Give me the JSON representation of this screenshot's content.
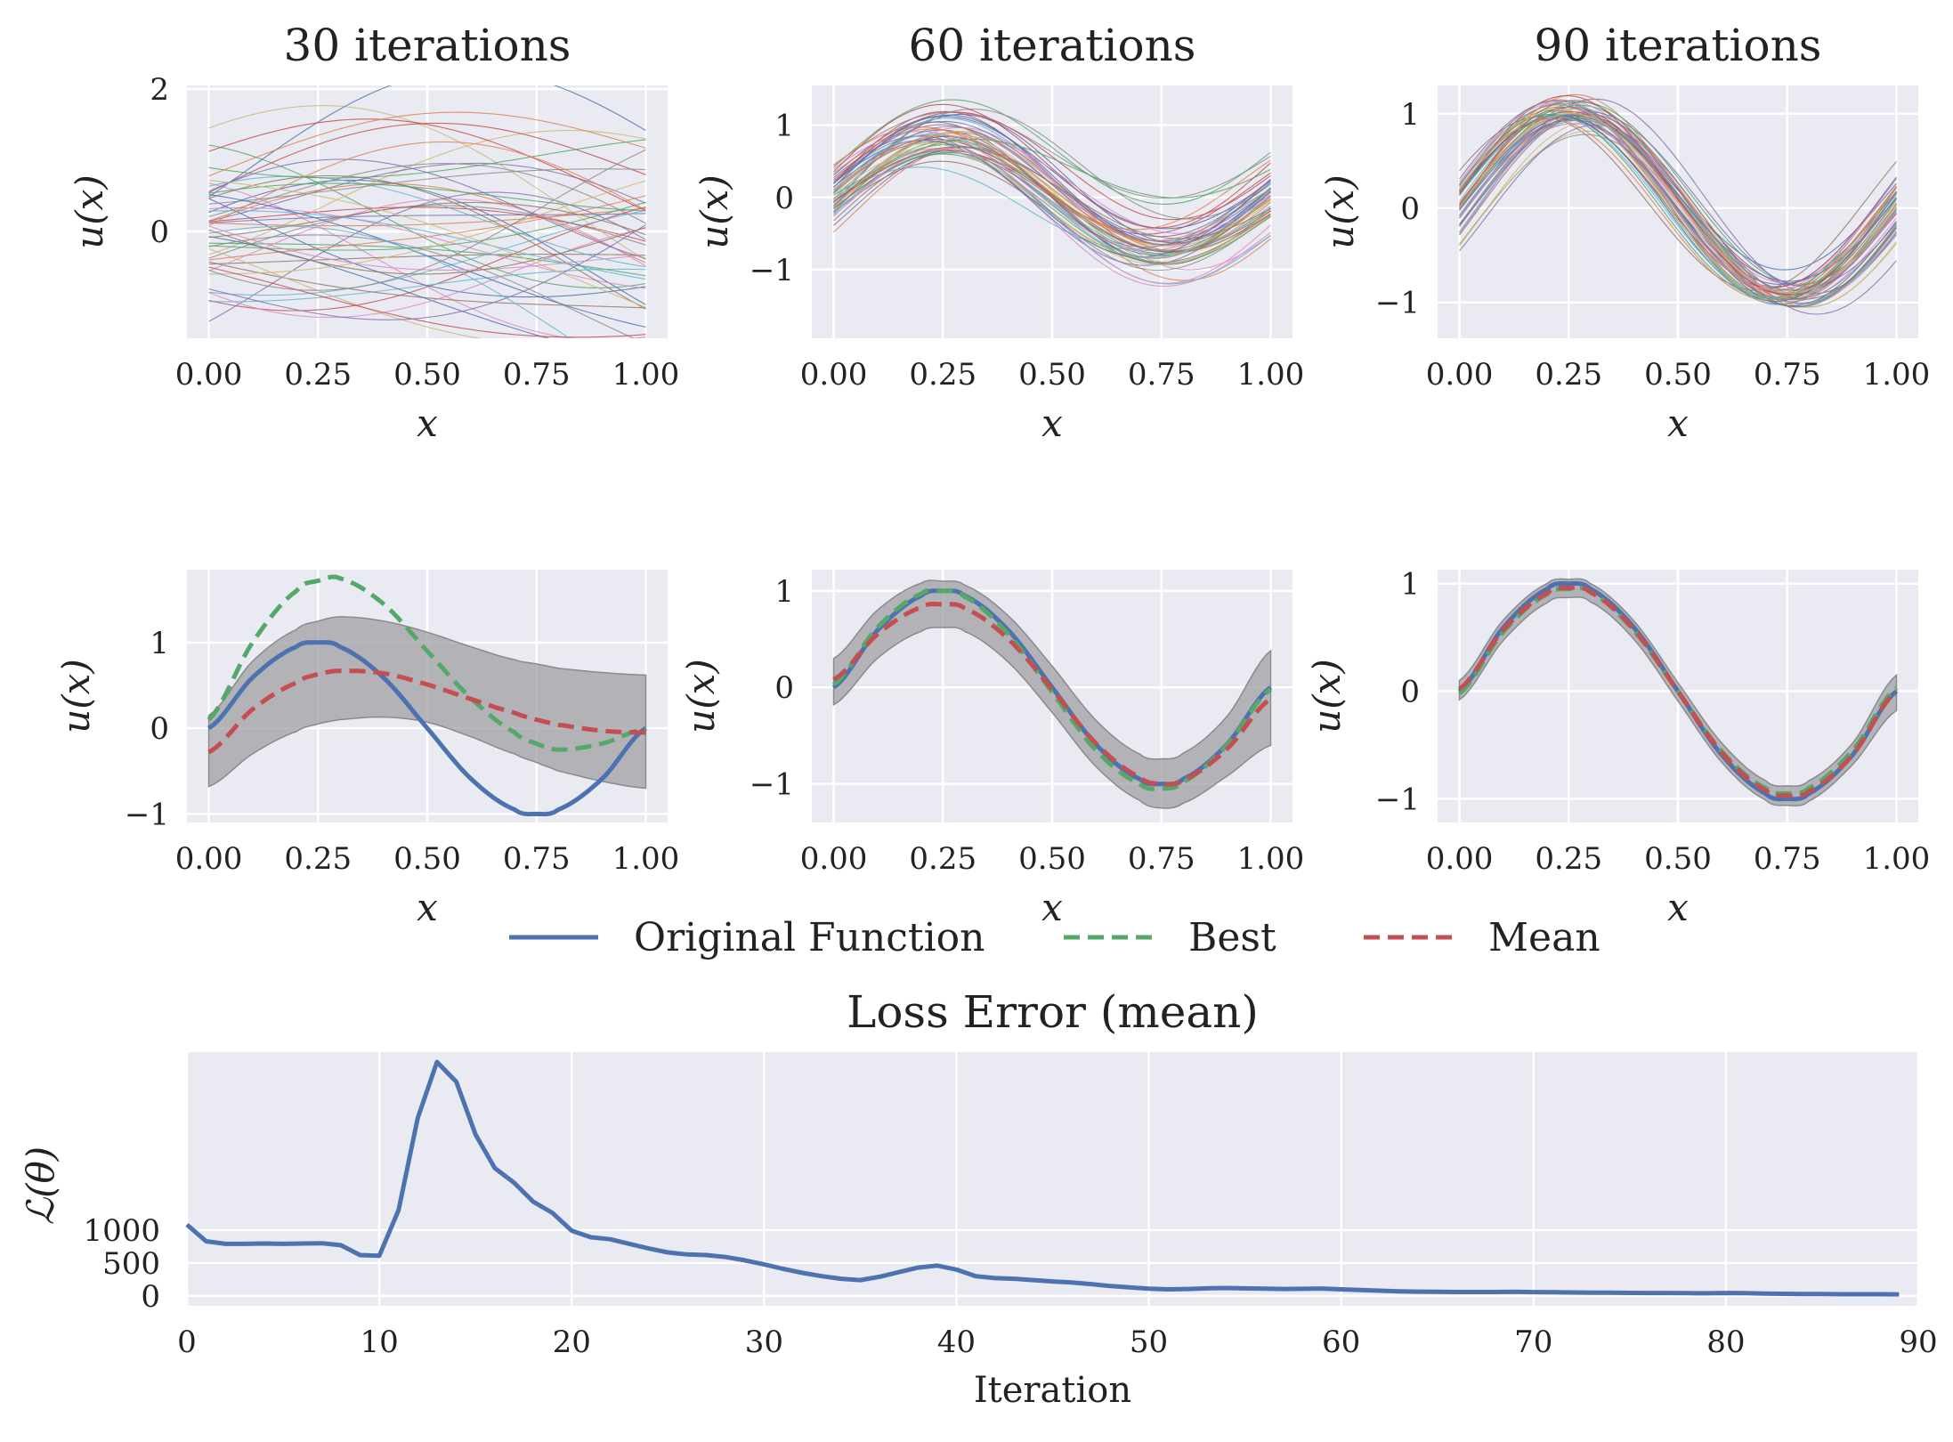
{
  "colors": {
    "axes_bg": "#EAEAF2",
    "grid": "#FFFFFF",
    "original": "#4C72B0",
    "best": "#55A868",
    "mean": "#C44E52",
    "band": "#9a9a9e",
    "sample_palette": [
      "#4C72B0",
      "#55A868",
      "#C44E52",
      "#8172B2",
      "#CCB974",
      "#64B5CD",
      "#DD8452",
      "#DA8BC3",
      "#937860",
      "#8C8C8C"
    ]
  },
  "legend": {
    "original": "Original Function",
    "best": "Best",
    "mean": "Mean"
  },
  "chart_data": [
    {
      "id": "samples-30",
      "type": "line",
      "title": "30 iterations",
      "xlabel": "x",
      "ylabel": "u(x)",
      "xlim": [
        -0.05,
        1.05
      ],
      "ylim": [
        -1.5,
        2.05
      ],
      "xticks": [
        "0.00",
        "0.25",
        "0.50",
        "0.75",
        "1.00"
      ],
      "yticks": [
        {
          "v": 0,
          "label": "0"
        },
        {
          "v": 2,
          "label": "2"
        }
      ],
      "series_count": 50,
      "spread": "wide",
      "x_range": [
        0,
        1
      ]
    },
    {
      "id": "samples-60",
      "type": "line",
      "title": "60 iterations",
      "xlabel": "x",
      "ylabel": "u(x)",
      "xlim": [
        -0.05,
        1.05
      ],
      "ylim": [
        -1.95,
        1.55
      ],
      "xticks": [
        "0.00",
        "0.25",
        "0.50",
        "0.75",
        "1.00"
      ],
      "yticks": [
        {
          "v": -1,
          "label": "−1"
        },
        {
          "v": 0,
          "label": "0"
        },
        {
          "v": 1,
          "label": "1"
        }
      ],
      "series_count": 50,
      "spread": "medium",
      "x_range": [
        0,
        1
      ]
    },
    {
      "id": "samples-90",
      "type": "line",
      "title": "90 iterations",
      "xlabel": "x",
      "ylabel": "u(x)",
      "xlim": [
        -0.05,
        1.05
      ],
      "ylim": [
        -1.38,
        1.3
      ],
      "xticks": [
        "0.00",
        "0.25",
        "0.50",
        "0.75",
        "1.00"
      ],
      "yticks": [
        {
          "v": -1,
          "label": "−1"
        },
        {
          "v": 0,
          "label": "0"
        },
        {
          "v": 1,
          "label": "1"
        }
      ],
      "series_count": 50,
      "spread": "narrow",
      "x_range": [
        0,
        1
      ]
    },
    {
      "id": "summary-30",
      "type": "line",
      "xlabel": "x",
      "ylabel": "u(x)",
      "xlim": [
        -0.05,
        1.05
      ],
      "ylim": [
        -1.1,
        1.85
      ],
      "xticks": [
        "0.00",
        "0.25",
        "0.50",
        "0.75",
        "1.00"
      ],
      "yticks": [
        {
          "v": -1,
          "label": "−1"
        },
        {
          "v": 0,
          "label": "0"
        },
        {
          "v": 1,
          "label": "1"
        }
      ],
      "x": [
        0,
        0.1,
        0.2,
        0.25,
        0.3,
        0.4,
        0.5,
        0.6,
        0.7,
        0.75,
        0.8,
        0.9,
        1.0
      ],
      "original": [
        0,
        0.59,
        0.95,
        1.0,
        0.95,
        0.59,
        0,
        -0.59,
        -0.95,
        -1.0,
        -0.95,
        -0.59,
        0
      ],
      "best": [
        0.1,
        1.0,
        1.6,
        1.72,
        1.75,
        1.45,
        0.9,
        0.35,
        -0.05,
        -0.18,
        -0.25,
        -0.18,
        0
      ],
      "mean": [
        -0.28,
        0.22,
        0.53,
        0.63,
        0.67,
        0.64,
        0.51,
        0.34,
        0.18,
        0.1,
        0.04,
        -0.03,
        -0.05
      ],
      "band_lower": [
        -0.68,
        -0.3,
        -0.04,
        0.05,
        0.1,
        0.13,
        0.07,
        -0.1,
        -0.3,
        -0.4,
        -0.5,
        -0.62,
        -0.7
      ],
      "band_upper": [
        0.15,
        0.78,
        1.15,
        1.25,
        1.3,
        1.25,
        1.12,
        0.95,
        0.8,
        0.75,
        0.7,
        0.65,
        0.62
      ]
    },
    {
      "id": "summary-60",
      "type": "line",
      "xlabel": "x",
      "ylabel": "u(x)",
      "xlim": [
        -0.05,
        1.05
      ],
      "ylim": [
        -1.4,
        1.22
      ],
      "xticks": [
        "0.00",
        "0.25",
        "0.50",
        "0.75",
        "1.00"
      ],
      "yticks": [
        {
          "v": -1,
          "label": "−1"
        },
        {
          "v": 0,
          "label": "0"
        },
        {
          "v": 1,
          "label": "1"
        }
      ],
      "x": [
        0,
        0.1,
        0.2,
        0.25,
        0.3,
        0.4,
        0.5,
        0.6,
        0.7,
        0.75,
        0.8,
        0.9,
        1.0
      ],
      "original": [
        0,
        0.59,
        0.95,
        1.0,
        0.95,
        0.59,
        0,
        -0.59,
        -0.95,
        -1.0,
        -0.95,
        -0.59,
        0
      ],
      "best": [
        0.03,
        0.62,
        0.97,
        1.0,
        0.94,
        0.55,
        -0.05,
        -0.65,
        -1.0,
        -1.05,
        -0.98,
        -0.6,
        -0.02
      ],
      "mean": [
        0.08,
        0.55,
        0.83,
        0.86,
        0.82,
        0.5,
        -0.02,
        -0.58,
        -0.93,
        -1.0,
        -0.96,
        -0.64,
        -0.12
      ],
      "band_lower": [
        -0.18,
        0.3,
        0.58,
        0.62,
        0.58,
        0.26,
        -0.26,
        -0.82,
        -1.17,
        -1.25,
        -1.2,
        -0.92,
        -0.6
      ],
      "band_upper": [
        0.3,
        0.8,
        1.08,
        1.1,
        1.06,
        0.74,
        0.22,
        -0.34,
        -0.69,
        -0.74,
        -0.68,
        -0.3,
        0.38
      ]
    },
    {
      "id": "summary-90",
      "type": "line",
      "xlabel": "x",
      "ylabel": "u(x)",
      "xlim": [
        -0.05,
        1.05
      ],
      "ylim": [
        -1.22,
        1.13
      ],
      "xticks": [
        "0.00",
        "0.25",
        "0.50",
        "0.75",
        "1.00"
      ],
      "yticks": [
        {
          "v": -1,
          "label": "−1"
        },
        {
          "v": 0,
          "label": "0"
        },
        {
          "v": 1,
          "label": "1"
        }
      ],
      "x": [
        0,
        0.1,
        0.2,
        0.25,
        0.3,
        0.4,
        0.5,
        0.6,
        0.7,
        0.75,
        0.8,
        0.9,
        1.0
      ],
      "original": [
        0,
        0.59,
        0.95,
        1.0,
        0.95,
        0.59,
        0,
        -0.59,
        -0.95,
        -1.0,
        -0.95,
        -0.59,
        0
      ],
      "best": [
        -0.02,
        0.55,
        0.9,
        0.95,
        0.92,
        0.56,
        0.0,
        -0.56,
        -0.9,
        -0.95,
        -0.9,
        -0.55,
        0.03
      ],
      "mean": [
        0.02,
        0.57,
        0.91,
        0.96,
        0.92,
        0.57,
        0.0,
        -0.57,
        -0.92,
        -0.97,
        -0.93,
        -0.59,
        0.0
      ],
      "band_lower": [
        -0.08,
        0.47,
        0.82,
        0.87,
        0.83,
        0.48,
        -0.09,
        -0.66,
        -1.01,
        -1.06,
        -1.02,
        -0.68,
        -0.18
      ],
      "band_upper": [
        0.1,
        0.66,
        1.0,
        1.04,
        1.0,
        0.65,
        0.08,
        -0.48,
        -0.83,
        -0.88,
        -0.83,
        -0.48,
        0.15
      ]
    },
    {
      "id": "loss",
      "type": "line",
      "title": "Loss Error (mean)",
      "xlabel": "Iteration",
      "ylabel": "ℒ(θ)",
      "xlim": [
        0,
        90
      ],
      "ylim": [
        -150,
        3700
      ],
      "xticks": [
        {
          "v": 0,
          "label": "0"
        },
        {
          "v": 10,
          "label": "10"
        },
        {
          "v": 20,
          "label": "20"
        },
        {
          "v": 30,
          "label": "30"
        },
        {
          "v": 40,
          "label": "40"
        },
        {
          "v": 50,
          "label": "50"
        },
        {
          "v": 60,
          "label": "60"
        },
        {
          "v": 70,
          "label": "70"
        },
        {
          "v": 80,
          "label": "80"
        },
        {
          "v": 90,
          "label": "90"
        }
      ],
      "yticks": [
        {
          "v": 0,
          "label": "0"
        },
        {
          "v": 500,
          "label": "500"
        },
        {
          "v": 1000,
          "label": "1000"
        }
      ],
      "x": [
        0,
        1,
        2,
        3,
        4,
        5,
        6,
        7,
        8,
        9,
        10,
        11,
        12,
        13,
        14,
        15,
        16,
        17,
        18,
        19,
        20,
        21,
        22,
        23,
        24,
        25,
        26,
        27,
        28,
        29,
        30,
        31,
        32,
        33,
        34,
        35,
        36,
        37,
        38,
        39,
        40,
        41,
        42,
        43,
        44,
        45,
        46,
        47,
        48,
        49,
        50,
        51,
        52,
        53,
        54,
        55,
        56,
        57,
        58,
        59,
        60,
        61,
        62,
        63,
        64,
        65,
        66,
        67,
        68,
        69,
        70,
        71,
        72,
        73,
        74,
        75,
        76,
        77,
        78,
        79,
        80,
        81,
        82,
        83,
        84,
        85,
        86,
        87,
        88,
        89
      ],
      "values": [
        1080,
        830,
        790,
        790,
        795,
        790,
        795,
        800,
        770,
        620,
        610,
        1300,
        2700,
        3550,
        3250,
        2450,
        1940,
        1720,
        1430,
        1260,
        990,
        890,
        860,
        790,
        720,
        660,
        630,
        620,
        590,
        540,
        480,
        410,
        350,
        300,
        260,
        240,
        290,
        360,
        430,
        460,
        400,
        300,
        270,
        260,
        240,
        220,
        205,
        180,
        150,
        130,
        110,
        100,
        105,
        115,
        120,
        115,
        110,
        105,
        108,
        112,
        100,
        90,
        80,
        70,
        65,
        62,
        60,
        60,
        60,
        62,
        58,
        55,
        52,
        50,
        48,
        46,
        45,
        44,
        42,
        40,
        45,
        42,
        36,
        32,
        30,
        28,
        26,
        25,
        25,
        24
      ]
    }
  ]
}
